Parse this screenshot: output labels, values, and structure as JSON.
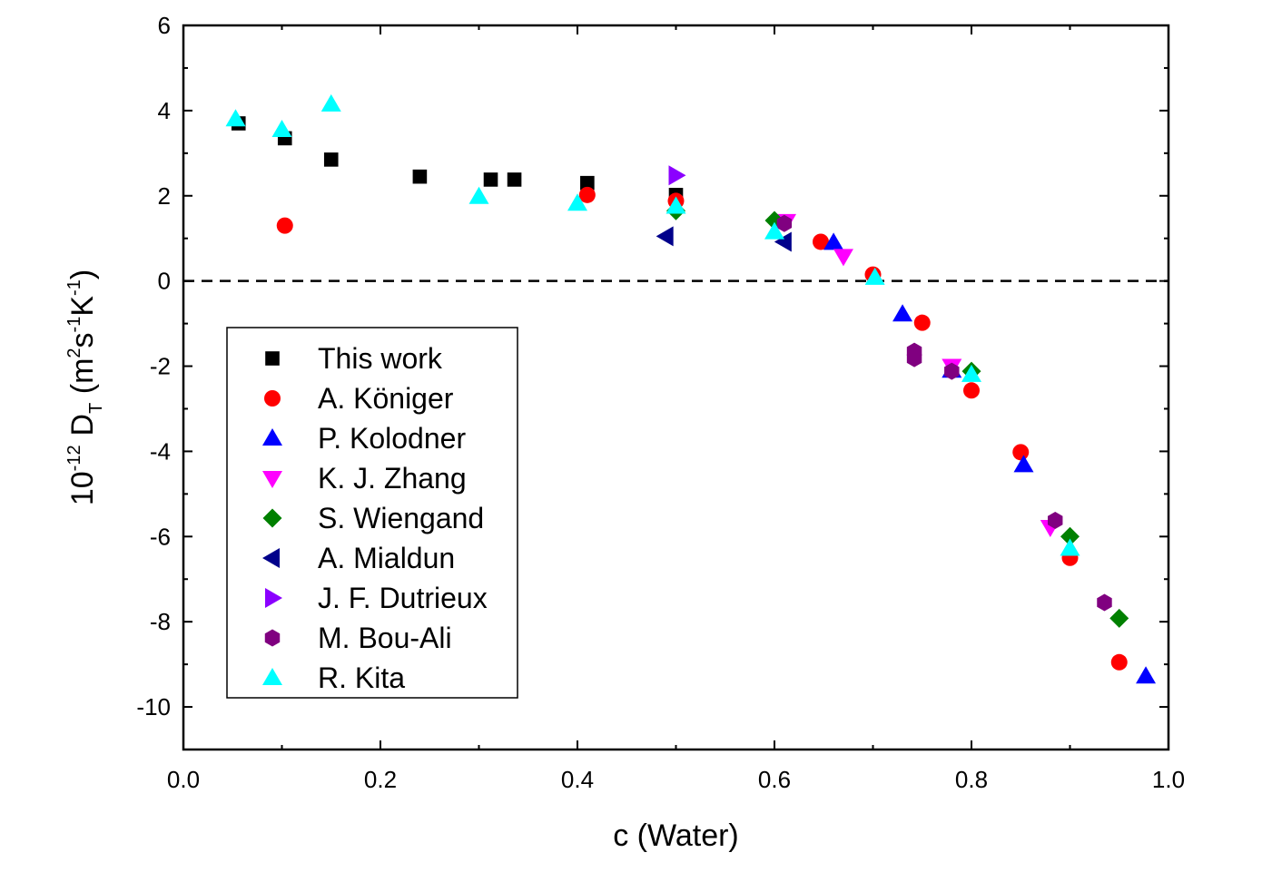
{
  "chart_data": {
    "type": "scatter",
    "xlabel": "c (Water)",
    "ylabel": {
      "main": "10",
      "exp": "-12",
      "D": "D",
      "Dsub": "T",
      "open": " (m",
      "exp2": "2",
      "s": "s",
      "expm1a": "-1",
      "K": "K",
      "expm1b": "-1",
      "close": ")"
    },
    "xlim": [
      0.0,
      1.0
    ],
    "ylim": [
      -11,
      6
    ],
    "xticks": [
      "0.0",
      "0.2",
      "0.4",
      "0.6",
      "0.8",
      "1.0"
    ],
    "yticks": [
      "6",
      "4",
      "2",
      "0",
      "-2",
      "-4",
      "-6",
      "-8",
      "-10"
    ],
    "reference_line": {
      "y": 0,
      "style": "dashed"
    },
    "legend_position": "bottom-left",
    "grid": false,
    "series": [
      {
        "name": "This work",
        "marker": "square",
        "color": "#000000",
        "points": [
          [
            0.056,
            3.7
          ],
          [
            0.103,
            3.35
          ],
          [
            0.15,
            2.85
          ],
          [
            0.24,
            2.45
          ],
          [
            0.312,
            2.38
          ],
          [
            0.336,
            2.38
          ],
          [
            0.41,
            2.3
          ],
          [
            0.5,
            2.02
          ]
        ]
      },
      {
        "name": "A. Königer",
        "marker": "circle",
        "color": "#ff0000",
        "points": [
          [
            0.103,
            1.3
          ],
          [
            0.41,
            2.02
          ],
          [
            0.5,
            1.88
          ],
          [
            0.647,
            0.92
          ],
          [
            0.7,
            0.15
          ],
          [
            0.75,
            -0.98
          ],
          [
            0.8,
            -2.57
          ],
          [
            0.85,
            -4.02
          ],
          [
            0.9,
            -6.5
          ],
          [
            0.95,
            -8.95
          ]
        ]
      },
      {
        "name": "P. Kolodner",
        "marker": "triangle-up",
        "color": "#0000ff",
        "points": [
          [
            0.66,
            0.9
          ],
          [
            0.73,
            -0.78
          ],
          [
            0.78,
            -2.1
          ],
          [
            0.853,
            -4.32
          ],
          [
            0.977,
            -9.28
          ]
        ]
      },
      {
        "name": "K. J. Zhang",
        "marker": "triangle-down",
        "color": "#ff00ff",
        "points": [
          [
            0.612,
            1.4
          ],
          [
            0.67,
            0.58
          ],
          [
            0.78,
            -2.0
          ],
          [
            0.88,
            -5.78
          ]
        ]
      },
      {
        "name": "S. Wiengand",
        "marker": "diamond",
        "color": "#008000",
        "points": [
          [
            0.5,
            1.65
          ],
          [
            0.6,
            1.42
          ],
          [
            0.8,
            -2.12
          ],
          [
            0.9,
            -6.0
          ],
          [
            0.95,
            -7.92
          ]
        ]
      },
      {
        "name": "A. Mialdun",
        "marker": "triangle-left",
        "color": "#00008b",
        "points": [
          [
            0.49,
            1.05
          ],
          [
            0.61,
            0.92
          ]
        ]
      },
      {
        "name": "J. F. Dutrieux",
        "marker": "triangle-right",
        "color": "#8b00ff",
        "points": [
          [
            0.5,
            2.48
          ]
        ]
      },
      {
        "name": "M. Bou-Ali",
        "marker": "hexagon",
        "color": "#800080",
        "points": [
          [
            0.61,
            1.35
          ],
          [
            0.742,
            -1.65
          ],
          [
            0.742,
            -1.82
          ],
          [
            0.78,
            -2.12
          ],
          [
            0.885,
            -5.62
          ],
          [
            0.935,
            -7.55
          ]
        ]
      },
      {
        "name": "R. Kita",
        "marker": "triangle-up",
        "color": "#00ffff",
        "points": [
          [
            0.053,
            3.8
          ],
          [
            0.1,
            3.55
          ],
          [
            0.15,
            4.15
          ],
          [
            0.3,
            1.98
          ],
          [
            0.4,
            1.82
          ],
          [
            0.5,
            1.75
          ],
          [
            0.6,
            1.15
          ],
          [
            0.702,
            0.08
          ],
          [
            0.8,
            -2.2
          ],
          [
            0.9,
            -6.28
          ]
        ]
      }
    ]
  }
}
